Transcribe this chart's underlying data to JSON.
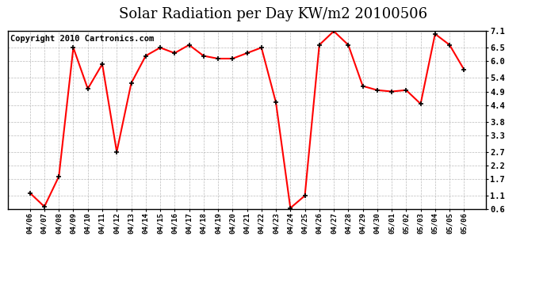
{
  "title": "Solar Radiation per Day KW/m2 20100506",
  "copyright": "Copyright 2010 Cartronics.com",
  "dates": [
    "04/06",
    "04/07",
    "04/08",
    "04/09",
    "04/10",
    "04/11",
    "04/12",
    "04/13",
    "04/14",
    "04/15",
    "04/16",
    "04/17",
    "04/18",
    "04/19",
    "04/20",
    "04/21",
    "04/22",
    "04/23",
    "04/24",
    "04/25",
    "04/26",
    "04/27",
    "04/28",
    "04/29",
    "04/30",
    "05/01",
    "05/02",
    "05/03",
    "05/04",
    "05/05",
    "05/06"
  ],
  "values": [
    1.2,
    0.7,
    1.8,
    6.5,
    5.0,
    5.9,
    2.7,
    5.2,
    6.2,
    6.5,
    6.3,
    6.6,
    6.2,
    6.1,
    6.1,
    6.3,
    6.5,
    4.5,
    0.65,
    1.1,
    6.6,
    7.1,
    6.6,
    5.1,
    4.95,
    4.9,
    4.95,
    4.45,
    7.0,
    6.6,
    5.7
  ],
  "ylim": [
    0.6,
    7.1
  ],
  "yticks": [
    0.6,
    1.1,
    1.7,
    2.2,
    2.7,
    3.3,
    3.8,
    4.4,
    4.9,
    5.4,
    6.0,
    6.5,
    7.1
  ],
  "line_color": "#FF0000",
  "marker_color": "#000000",
  "bg_color": "#FFFFFF",
  "plot_bg_color": "#FFFFFF",
  "grid_color": "#AAAAAA",
  "title_fontsize": 13,
  "copyright_fontsize": 7.5
}
